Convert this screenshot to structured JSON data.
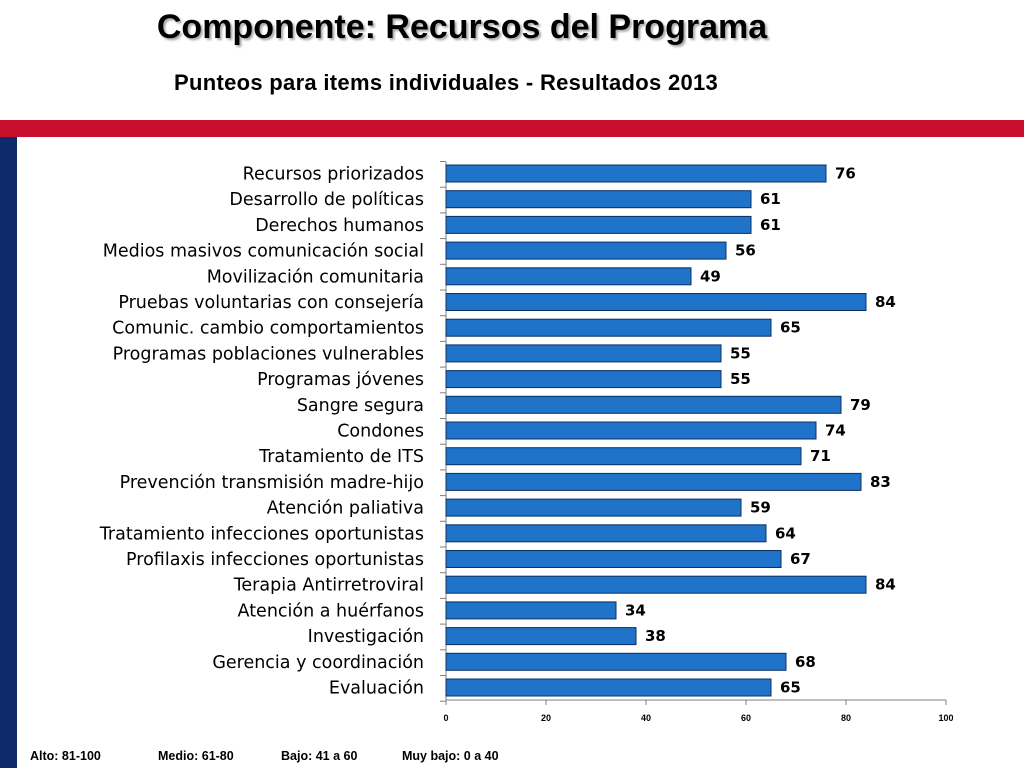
{
  "header": {
    "title": "Componente: Recursos del Programa",
    "subtitle": "Punteos para items individuales - Resultados 2013"
  },
  "colors": {
    "accent_red": "#c8102e",
    "accent_navy": "#0d2a6b",
    "bar_fill": "#1f74c9",
    "bar_stroke": "#0b2f63"
  },
  "chart_data": {
    "type": "bar",
    "orientation": "horizontal",
    "categories": [
      "Recursos priorizados",
      "Desarrollo de políticas",
      "Derechos humanos",
      "Medios masivos comunicación social",
      "Movilización comunitaria",
      "Pruebas voluntarias con consejería",
      "Comunic. cambio comportamientos",
      "Programas poblaciones vulnerables",
      "Programas  jóvenes",
      "Sangre segura",
      "Condones",
      "Tratamiento de ITS",
      "Prevención transmisión madre-hijo",
      "Atención paliativa",
      "Tratamiento infecciones oportunistas",
      "Profilaxis infecciones oportunistas",
      "Terapia Antirretroviral",
      "Atención a huérfanos",
      "Investigación",
      "Gerencia y coordinación",
      "Evaluación"
    ],
    "values": [
      76,
      61,
      61,
      56,
      49,
      84,
      65,
      55,
      55,
      79,
      74,
      71,
      83,
      59,
      64,
      67,
      84,
      34,
      38,
      68,
      65
    ],
    "xlim": [
      0,
      100
    ],
    "xticks": [
      0,
      20,
      40,
      60,
      80,
      100
    ],
    "grid": false,
    "data_labels": true
  },
  "legend": {
    "alto": "Alto:  81-100",
    "medio": "Medio: 61-80",
    "bajo": "Bajo:  41 a 60",
    "muy_bajo": "Muy bajo:  0 a 40"
  }
}
